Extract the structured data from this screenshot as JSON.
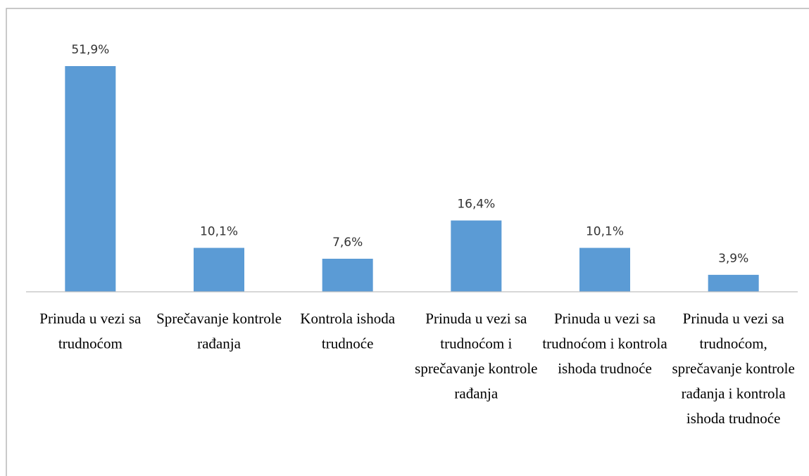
{
  "chart_data": {
    "type": "bar",
    "categories": [
      "Prinuda u vezi sa trudnoćom",
      "Sprečavanje kontrole rađanja",
      "Kontrola ishoda trudnoće",
      "Prinuda u vezi sa trudnoćom i sprečavanje kontrole rađanja",
      "Prinuda u vezi sa trudnoćom i kontrola ishoda trudnoće",
      "Prinuda u vezi sa trudnoćom, sprečavanje kontrole rađanja i kontrola ishoda trudnoće"
    ],
    "values": [
      51.9,
      10.1,
      7.6,
      16.4,
      10.1,
      3.9
    ],
    "value_labels": [
      "51,9%",
      "10,1%",
      "7,6%",
      "16,4%",
      "10,1%",
      "3,9%"
    ],
    "color": "#5b9bd5"
  }
}
